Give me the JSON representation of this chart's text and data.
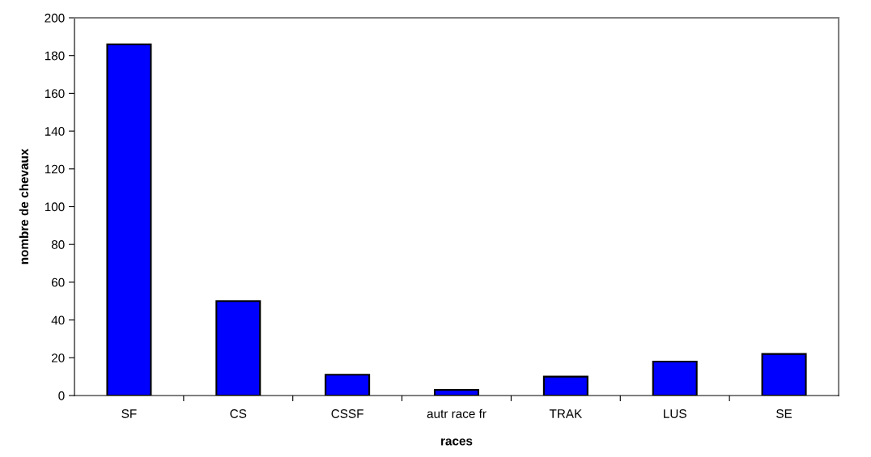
{
  "chart_data": {
    "type": "bar",
    "xlabel": "races",
    "ylabel": "nombre de chevaux",
    "categories": [
      "SF",
      "CS",
      "CSSF",
      "autr race fr",
      "TRAK",
      "LUS",
      "SE"
    ],
    "values": [
      186,
      50,
      11,
      3,
      10,
      18,
      22
    ],
    "color": "#0000ff",
    "ylim": [
      0,
      200
    ],
    "yticks": [
      0,
      20,
      40,
      60,
      80,
      100,
      120,
      140,
      160,
      180,
      200
    ],
    "grid": false,
    "legend": false
  }
}
